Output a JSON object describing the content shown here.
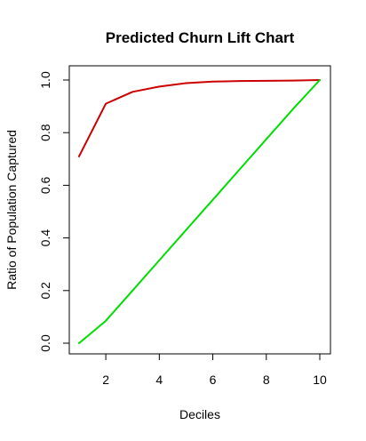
{
  "chart_data": {
    "type": "line",
    "title": "Predicted Churn Lift Chart",
    "xlabel": "Deciles",
    "ylabel": "Ratio of Population Captured",
    "xlim": [
      1,
      10
    ],
    "ylim": [
      0,
      1
    ],
    "x_ticks": [
      2,
      4,
      6,
      8,
      10
    ],
    "x_tick_labels": [
      "2",
      "4",
      "6",
      "8",
      "10"
    ],
    "y_ticks": [
      0.0,
      0.2,
      0.4,
      0.6,
      0.8,
      1.0
    ],
    "y_tick_labels": [
      "0.0",
      "0.2",
      "0.4",
      "0.6",
      "0.8",
      "1.0"
    ],
    "grid": false,
    "legend": "none",
    "x": [
      1,
      2,
      3,
      4,
      5,
      6,
      7,
      8,
      9,
      10
    ],
    "series": [
      {
        "color": "#cc0000",
        "values": [
          0.71,
          0.91,
          0.955,
          0.975,
          0.988,
          0.994,
          0.996,
          0.997,
          0.998,
          1.0
        ]
      },
      {
        "color": "#00dd00",
        "values": [
          0.0,
          0.085,
          0.2,
          0.315,
          0.43,
          0.545,
          0.66,
          0.775,
          0.89,
          1.0
        ]
      }
    ]
  }
}
